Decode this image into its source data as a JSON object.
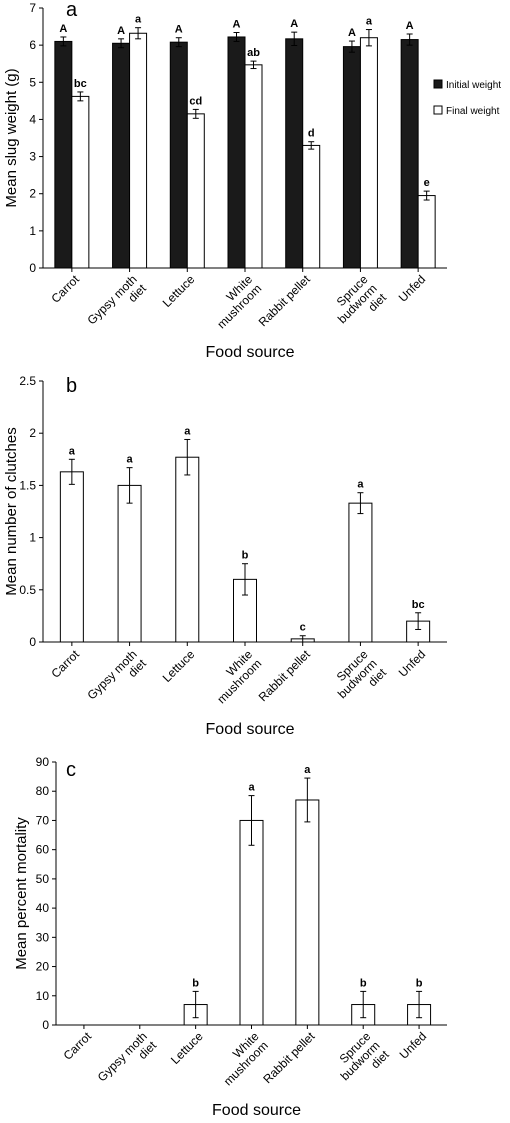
{
  "chart_data": [
    {
      "panel_label": "a",
      "type": "bar",
      "categories": [
        [
          "Carrot"
        ],
        [
          "Gypsy moth",
          "diet"
        ],
        [
          "Lettuce"
        ],
        [
          "White",
          "mushroom"
        ],
        [
          "Rabbit pellet"
        ],
        [
          "Spruce",
          "budworm",
          "diet"
        ],
        [
          "Unfed"
        ]
      ],
      "xlabel": "Food source",
      "ylabel": "Mean slug weight (g)",
      "ylim": [
        0,
        7
      ],
      "yticks": [
        "0",
        "1",
        "2",
        "3",
        "4",
        "5",
        "6",
        "7"
      ],
      "grid": false,
      "legend_position": "right",
      "series": [
        {
          "name": "Initial weight",
          "fill": "#1a1a1a",
          "values": [
            6.1,
            6.05,
            6.08,
            6.22,
            6.17,
            5.96,
            6.15
          ],
          "errors": [
            0.12,
            0.12,
            0.12,
            0.12,
            0.18,
            0.15,
            0.15
          ],
          "labels": [
            "A",
            "A",
            "A",
            "A",
            "A",
            "A",
            "A"
          ]
        },
        {
          "name": "Final weight",
          "fill": "#ffffff",
          "values": [
            4.62,
            6.32,
            4.15,
            5.47,
            3.3,
            6.2,
            1.95
          ],
          "errors": [
            0.12,
            0.15,
            0.12,
            0.1,
            0.1,
            0.22,
            0.12
          ],
          "labels": [
            "bc",
            "a",
            "cd",
            "ab",
            "d",
            "a",
            "e"
          ]
        }
      ]
    },
    {
      "panel_label": "b",
      "type": "bar",
      "categories": [
        [
          "Carrot"
        ],
        [
          "Gypsy moth",
          "diet"
        ],
        [
          "Lettuce"
        ],
        [
          "White",
          "mushroom"
        ],
        [
          "Rabbit pellet"
        ],
        [
          "Spruce",
          "budworm",
          "diet"
        ],
        [
          "Unfed"
        ]
      ],
      "xlabel": "Food source",
      "ylabel": "Mean number of clutches",
      "ylim": [
        0,
        2.5
      ],
      "yticks": [
        "0",
        "0.5",
        "1",
        "1.5",
        "2",
        "2.5"
      ],
      "grid": false,
      "series": [
        {
          "fill": "#ffffff",
          "values": [
            1.63,
            1.5,
            1.77,
            0.6,
            0.03,
            1.33,
            0.2
          ],
          "errors": [
            0.12,
            0.17,
            0.17,
            0.15,
            0.03,
            0.1,
            0.08
          ],
          "labels": [
            "a",
            "a",
            "a",
            "b",
            "c",
            "a",
            "bc"
          ]
        }
      ]
    },
    {
      "panel_label": "c",
      "type": "bar",
      "categories": [
        [
          "Carrot"
        ],
        [
          "Gypsy moth",
          "diet"
        ],
        [
          "Lettuce"
        ],
        [
          "White",
          "mushroom"
        ],
        [
          "Rabbit pellet"
        ],
        [
          "Spruce",
          "budworm",
          "diet"
        ],
        [
          "Unfed"
        ]
      ],
      "xlabel": "Food source",
      "ylabel": "Mean percent mortality",
      "ylim": [
        0,
        90
      ],
      "yticks": [
        "0",
        "10",
        "20",
        "30",
        "40",
        "50",
        "60",
        "70",
        "80",
        "90"
      ],
      "grid": false,
      "series": [
        {
          "fill": "#ffffff",
          "values": [
            0,
            0,
            7,
            70,
            77,
            7,
            7
          ],
          "errors": [
            0,
            0,
            4.5,
            8.5,
            7.5,
            4.5,
            4.5
          ],
          "labels": [
            "",
            "",
            "b",
            "a",
            "a",
            "b",
            "b"
          ]
        }
      ]
    }
  ]
}
